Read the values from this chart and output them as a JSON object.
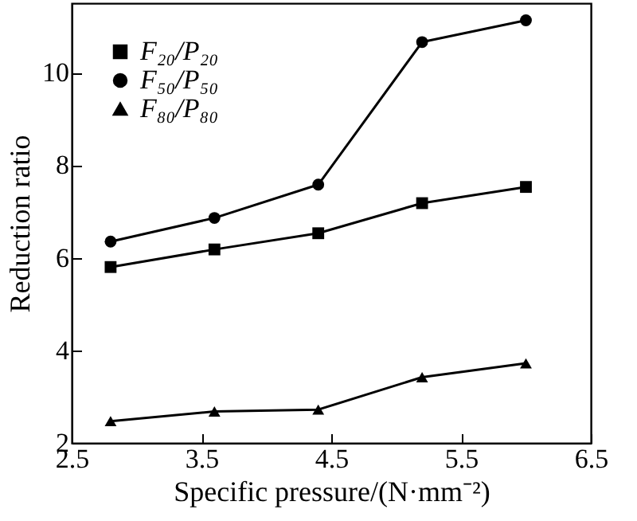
{
  "chart_data": {
    "type": "line",
    "xlabel": "Specific pressure/(N·mm⁻²)",
    "ylabel": "Reduction ratio",
    "x": [
      2.8,
      3.6,
      4.4,
      5.2,
      6.0
    ],
    "series": [
      {
        "name": "F₂₀/P₂₀",
        "color": "#000000",
        "marker": "square",
        "values": [
          5.8,
          6.18,
          6.53,
          7.18,
          7.53
        ]
      },
      {
        "name": "F₅₀/P₅₀",
        "color": "#000000",
        "marker": "circle",
        "values": [
          6.35,
          6.86,
          7.58,
          10.66,
          11.13
        ]
      },
      {
        "name": "F₈₀/P₈₀",
        "color": "#000000",
        "marker": "triangle",
        "values": [
          2.47,
          2.68,
          2.72,
          3.42,
          3.72
        ]
      }
    ],
    "xlim": [
      2.5,
      6.5
    ],
    "xticks": [
      2.5,
      3.5,
      4.5,
      5.5,
      6.5
    ],
    "ylim": [
      2,
      11.5
    ],
    "yticks": [
      2,
      4,
      6,
      8,
      10
    ],
    "grid": false,
    "legend": "top left",
    "line_style": "solid"
  }
}
